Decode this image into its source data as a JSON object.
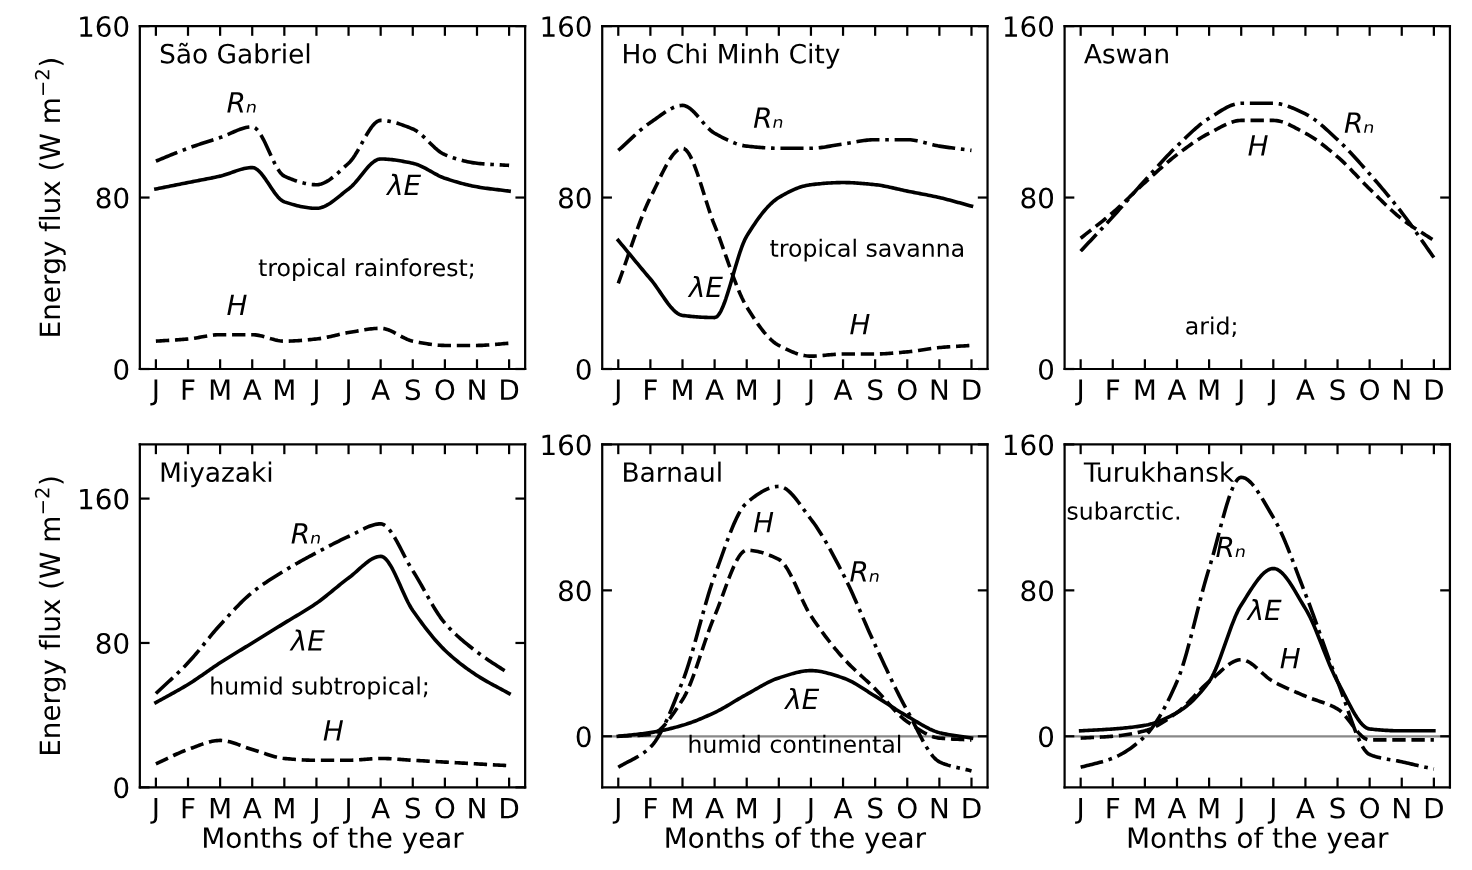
{
  "chart_data": [
    {
      "type": "line",
      "title": "São Gabriel",
      "ylabel": "Energy flux (W m$^{−2}$)",
      "annotations": [
        "tropical rainforest;"
      ],
      "categories": [
        "J",
        "F",
        "M",
        "A",
        "M",
        "J",
        "J",
        "A",
        "S",
        "O",
        "N",
        "D"
      ],
      "ylim": [
        0,
        160
      ],
      "yticks": [
        0,
        80,
        160
      ],
      "legend": false,
      "grid": false,
      "series": [
        {
          "name": "Rₙ",
          "color": "#000000",
          "line_style": "dashdot",
          "values": [
            97,
            103,
            108,
            113,
            90,
            86,
            96,
            116,
            112,
            100,
            96,
            95
          ]
        },
        {
          "name": "λE",
          "color": "#000000",
          "line_style": "solid",
          "values": [
            84,
            87,
            90,
            94,
            78,
            75,
            84,
            98,
            96,
            89,
            85,
            83
          ]
        },
        {
          "name": "H",
          "color": "#000000",
          "line_style": "dashed",
          "values": [
            13,
            14,
            16,
            16,
            13,
            14,
            17,
            19,
            13,
            11,
            11,
            12
          ]
        }
      ]
    },
    {
      "type": "line",
      "title": "Ho Chi Minh City",
      "annotations": [
        "tropical savanna"
      ],
      "categories": [
        "J",
        "F",
        "M",
        "A",
        "M",
        "J",
        "J",
        "A",
        "S",
        "O",
        "N",
        "D"
      ],
      "ylim": [
        0,
        160
      ],
      "yticks": [
        0,
        80,
        160
      ],
      "legend": false,
      "grid": false,
      "series": [
        {
          "name": "Rₙ",
          "color": "#000000",
          "line_style": "dashdot",
          "values": [
            102,
            115,
            123,
            110,
            104,
            103,
            103,
            105,
            107,
            107,
            104,
            102
          ]
        },
        {
          "name": "λE",
          "color": "#000000",
          "line_style": "solid",
          "values": [
            60,
            42,
            25,
            24,
            62,
            80,
            86,
            87,
            86,
            83,
            80,
            76
          ]
        },
        {
          "name": "H",
          "color": "#000000",
          "line_style": "dashed",
          "values": [
            40,
            80,
            103,
            67,
            29,
            11,
            6,
            7,
            7,
            8,
            10,
            11
          ]
        }
      ]
    },
    {
      "type": "line",
      "title": "Aswan",
      "annotations": [
        "arid;"
      ],
      "categories": [
        "J",
        "F",
        "M",
        "A",
        "M",
        "J",
        "J",
        "A",
        "S",
        "O",
        "N",
        "D"
      ],
      "ylim": [
        0,
        160
      ],
      "yticks": [
        0,
        80,
        160
      ],
      "legend": false,
      "grid": false,
      "series": [
        {
          "name": "Rₙ",
          "color": "#000000",
          "line_style": "dashdot",
          "values": [
            55,
            71,
            88,
            104,
            117,
            124,
            124,
            119,
            107,
            91,
            73,
            52
          ]
        },
        {
          "name": "H",
          "color": "#000000",
          "line_style": "dashed",
          "values": [
            61,
            73,
            87,
            100,
            110,
            116,
            116,
            110,
            99,
            84,
            70,
            60
          ]
        }
      ]
    },
    {
      "type": "line",
      "title": "Miyazaki",
      "ylabel": "Energy flux (W m$^{−2}$)",
      "xlabel": "Months of the year",
      "annotations": [
        "humid subtropical;"
      ],
      "categories": [
        "J",
        "F",
        "M",
        "A",
        "M",
        "J",
        "J",
        "A",
        "S",
        "O",
        "N",
        "D"
      ],
      "ylim": [
        0,
        190
      ],
      "yticks": [
        0,
        80,
        160
      ],
      "legend": false,
      "grid": false,
      "series": [
        {
          "name": "Rₙ",
          "color": "#000000",
          "line_style": "dashdot",
          "values": [
            52,
            69,
            90,
            108,
            120,
            130,
            139,
            146,
            120,
            91,
            75,
            63
          ]
        },
        {
          "name": "λE",
          "color": "#000000",
          "line_style": "solid",
          "values": [
            47,
            57,
            69,
            80,
            91,
            102,
            116,
            128,
            98,
            76,
            62,
            52
          ]
        },
        {
          "name": "H",
          "color": "#000000",
          "line_style": "dashed",
          "values": [
            13,
            21,
            26,
            21,
            16,
            15,
            15,
            16,
            15,
            14,
            13,
            12
          ]
        }
      ]
    },
    {
      "type": "line",
      "title": "Barnaul",
      "xlabel": "Months of the year",
      "annotations": [
        "humid continental"
      ],
      "categories": [
        "J",
        "F",
        "M",
        "A",
        "M",
        "J",
        "J",
        "A",
        "S",
        "O",
        "N",
        "D"
      ],
      "ylim": [
        -28,
        160
      ],
      "yticks": [
        0,
        80,
        160
      ],
      "legend": false,
      "grid": false,
      "ref_lines": [
        {
          "axis": "y",
          "value": 0,
          "color": "#888888"
        }
      ],
      "series": [
        {
          "name": "Rₙ",
          "color": "#000000",
          "line_style": "dashdot",
          "values": [
            -17,
            -6,
            30,
            88,
            128,
            137,
            119,
            89,
            50,
            14,
            -14,
            -19
          ]
        },
        {
          "name": "H",
          "color": "#000000",
          "line_style": "dashed",
          "values": [
            0,
            1,
            20,
            66,
            102,
            97,
            66,
            43,
            26,
            8,
            -1,
            -2
          ]
        },
        {
          "name": "λE",
          "color": "#000000",
          "line_style": "solid",
          "values": [
            0,
            2,
            6,
            13,
            23,
            32,
            36,
            32,
            22,
            11,
            2,
            -1
          ]
        }
      ]
    },
    {
      "type": "line",
      "title": "Turukhansk",
      "xlabel": "Months of the year",
      "annotations": [
        "subarctic."
      ],
      "categories": [
        "J",
        "F",
        "M",
        "A",
        "M",
        "J",
        "J",
        "A",
        "S",
        "O",
        "N",
        "D"
      ],
      "ylim": [
        -28,
        160
      ],
      "yticks": [
        0,
        80,
        160
      ],
      "legend": false,
      "grid": false,
      "ref_lines": [
        {
          "axis": "y",
          "value": 0,
          "color": "#888888"
        }
      ],
      "series": [
        {
          "name": "Rₙ",
          "color": "#000000",
          "line_style": "dashdot",
          "values": [
            -17,
            -12,
            0,
            30,
            92,
            142,
            120,
            78,
            30,
            -10,
            -14,
            -18
          ]
        },
        {
          "name": "λE",
          "color": "#000000",
          "line_style": "solid",
          "values": [
            3,
            4,
            6,
            13,
            30,
            72,
            92,
            70,
            30,
            4,
            3,
            3
          ]
        },
        {
          "name": "H",
          "color": "#000000",
          "line_style": "dashed",
          "values": [
            -1,
            0,
            3,
            13,
            30,
            42,
            30,
            22,
            15,
            -2,
            -2,
            -2
          ]
        }
      ]
    }
  ]
}
